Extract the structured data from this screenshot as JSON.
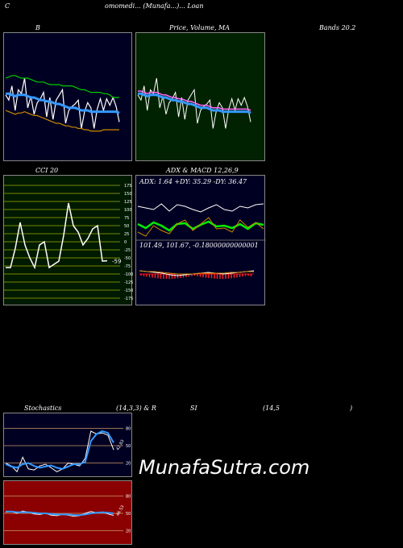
{
  "header": {
    "corner": "C",
    "title": "omomedi... (Munafa...)... Loan"
  },
  "labels": {
    "bb": "B",
    "price_ma": "Price, Volume, MA",
    "bands": "Bands 20.2",
    "cci": "CCI 20",
    "adx_macd": "ADX & MACD 12,26,9",
    "stoch_a": "Stochastics",
    "stoch_b": "(14,3,3) & R",
    "stoch_c": "SI",
    "stoch_d": "(14,5",
    "stoch_e": ")"
  },
  "adx_text": "ADX: 1.64  +DY: 35.29 -DY: 36.47",
  "macd_text": "101.49,  101.67,  -0.18000000000001",
  "cci_last": "-59",
  "stoch_last": "42.83",
  "rsi_last": "46.53",
  "watermark": "MunafaSutra.com",
  "colors": {
    "bb_bg": "#000022",
    "price_bg": "#002200",
    "cci_bg": "#001a00",
    "adx_bg": "#000022",
    "stoch_bg": "#000022",
    "rsi_bg": "#8b0000"
  },
  "chart_data": [
    {
      "type": "line",
      "panel": "bollinger",
      "series": [
        {
          "color": "#ffffff",
          "values": [
            48,
            52,
            41,
            60,
            44,
            47,
            35,
            58,
            49,
            63,
            54,
            51,
            46,
            65,
            50,
            67,
            52,
            48,
            44,
            70,
            60,
            57,
            55,
            52,
            74,
            61,
            54,
            58,
            74,
            59,
            51,
            60,
            51,
            56,
            50,
            57,
            69
          ]
        },
        {
          "color": "#3399ff",
          "values": [
            47,
            47,
            48,
            49,
            48,
            48,
            48,
            49,
            50,
            50,
            51,
            52,
            52,
            53,
            53,
            54,
            55,
            55,
            56,
            57,
            58,
            58,
            58,
            59,
            60,
            60,
            60,
            61,
            61,
            61,
            61,
            61,
            61,
            61,
            61,
            61,
            62
          ]
        },
        {
          "color": "#00cc00",
          "values": [
            35,
            34,
            33,
            33,
            34,
            35,
            35,
            35,
            36,
            37,
            38,
            38,
            38,
            39,
            40,
            40,
            40,
            40,
            41,
            41,
            41,
            41,
            42,
            43,
            44,
            44,
            45,
            46,
            46,
            46,
            46,
            47,
            47,
            48,
            50,
            50,
            50
          ]
        },
        {
          "color": "#cc8800",
          "values": [
            60,
            61,
            62,
            63,
            62,
            62,
            61,
            62,
            63,
            64,
            64,
            65,
            66,
            67,
            68,
            69,
            70,
            70,
            71,
            72,
            72,
            73,
            73,
            74,
            74,
            75,
            75,
            76,
            76,
            76,
            76,
            75,
            75,
            75,
            75,
            75,
            75
          ]
        }
      ]
    },
    {
      "type": "bar",
      "panel": "cci",
      "ylim": [
        -175,
        175
      ],
      "ticks": [
        "175",
        "150",
        "125",
        "100",
        "75",
        "50",
        "25",
        "0",
        "-25",
        "-50",
        "-75",
        "-100",
        "-125",
        "-150",
        "-175"
      ],
      "values": [
        -80,
        -80,
        -20,
        60,
        -10,
        -50,
        -80,
        -10,
        0,
        -80,
        -70,
        -60,
        20,
        120,
        50,
        30,
        -10,
        10,
        40,
        50,
        -60,
        -59
      ]
    },
    {
      "type": "line",
      "panel": "adx",
      "series": [
        {
          "color": "#00ee00",
          "values": [
            30,
            35,
            28,
            32,
            38,
            30,
            29,
            36,
            31,
            27,
            33,
            32,
            35,
            30,
            36,
            29,
            31
          ]
        },
        {
          "color": "#cc8800",
          "values": [
            40,
            45,
            32,
            38,
            42,
            30,
            25,
            38,
            30,
            22,
            36,
            35,
            40,
            25,
            34,
            28,
            36
          ]
        },
        {
          "color": "#ffffff",
          "values": [
            8,
            10,
            12,
            5,
            14,
            6,
            8,
            12,
            15,
            10,
            6,
            12,
            14,
            8,
            10,
            6,
            5
          ]
        }
      ]
    },
    {
      "type": "line",
      "panel": "stochastics",
      "ylim": [
        0,
        100
      ],
      "ticks": [
        "80",
        "50",
        "20"
      ],
      "series": [
        {
          "color": "#ffffff",
          "values": [
            20,
            15,
            5,
            30,
            10,
            8,
            15,
            18,
            12,
            5,
            10,
            20,
            18,
            15,
            28,
            75,
            70,
            72,
            68,
            42.83
          ]
        },
        {
          "color": "#3399ff",
          "values": [
            18,
            14,
            12,
            18,
            20,
            15,
            12,
            14,
            16,
            12,
            10,
            14,
            18,
            18,
            22,
            58,
            70,
            75,
            72,
            55
          ]
        }
      ]
    },
    {
      "type": "line",
      "panel": "rsi",
      "ylim": [
        0,
        100
      ],
      "ticks": [
        "80",
        "50",
        "20"
      ],
      "series": [
        {
          "color": "#ffffff",
          "values": [
            52,
            53,
            50,
            54,
            52,
            49,
            48,
            50,
            47,
            46,
            48,
            47,
            45,
            46,
            50,
            53,
            51,
            52,
            49,
            46.53
          ]
        },
        {
          "color": "#3399ff",
          "values": [
            53,
            53,
            52,
            52,
            52,
            51,
            50,
            50,
            49,
            48,
            48,
            48,
            47,
            47,
            48,
            50,
            51,
            52,
            51,
            50
          ]
        }
      ]
    }
  ]
}
